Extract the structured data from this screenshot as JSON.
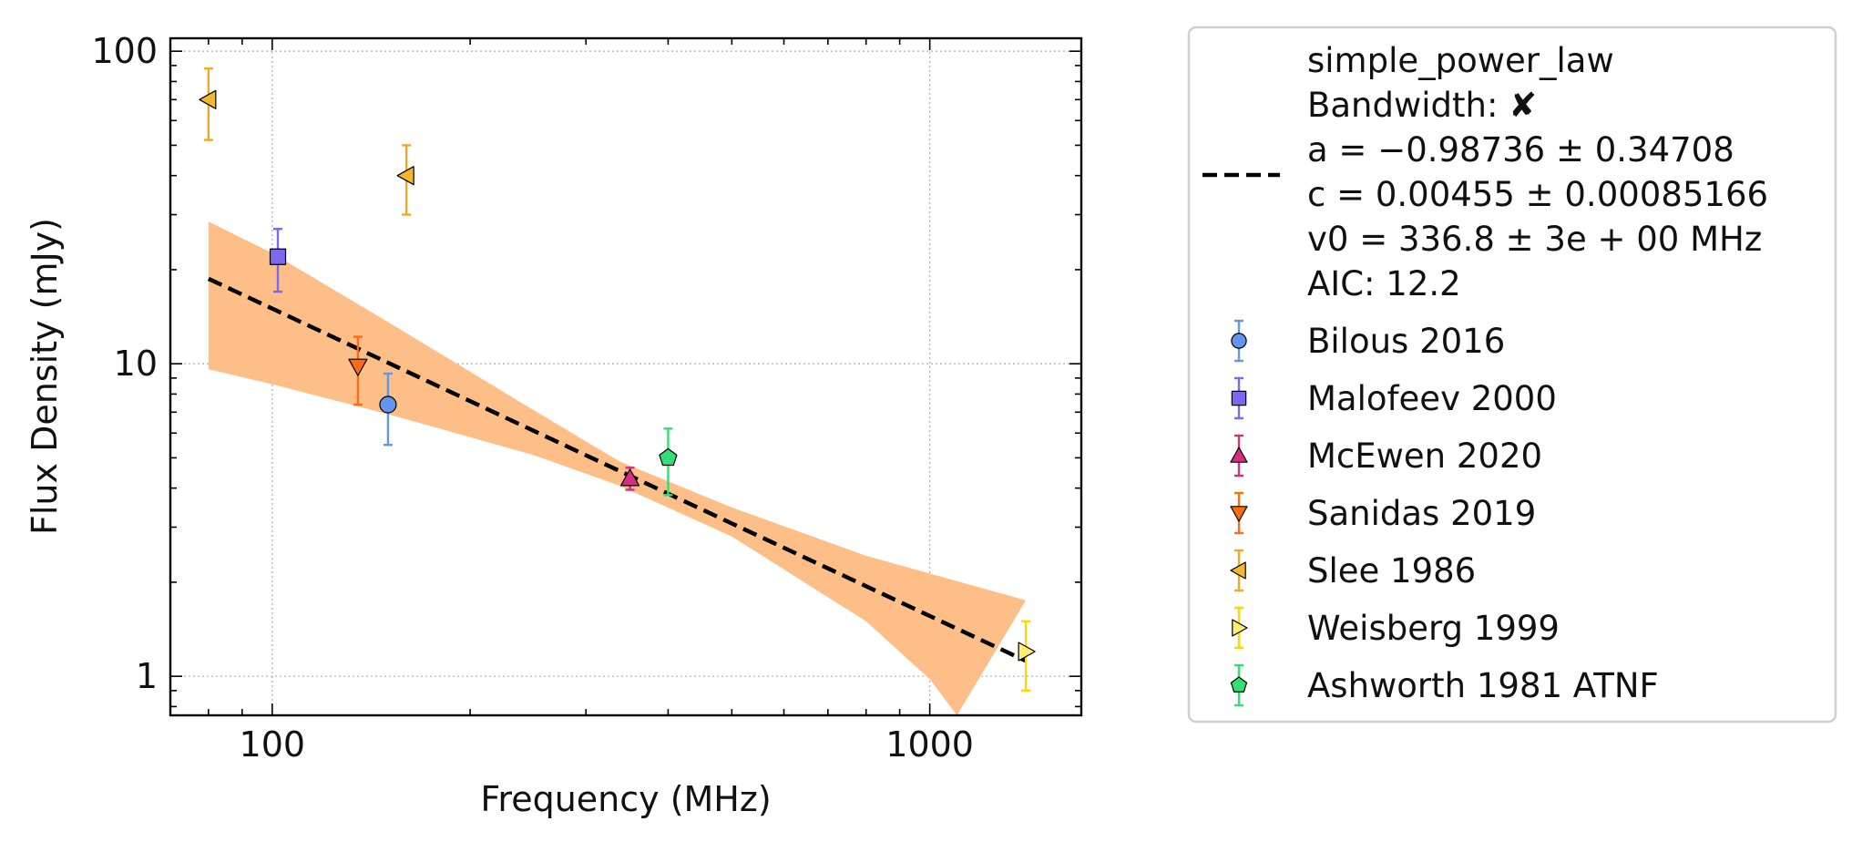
{
  "chart_data": {
    "type": "scatter",
    "xlabel": "Frequency (MHz)",
    "ylabel": "Flux Density (mJy)",
    "x_scale": "log",
    "y_scale": "log",
    "xlim": [
      70,
      1700
    ],
    "ylim": [
      0.75,
      110
    ],
    "x_ticks": [
      {
        "value": 100,
        "label": "100"
      },
      {
        "value": 1000,
        "label": "1000"
      }
    ],
    "y_ticks": [
      {
        "value": 1,
        "label": "1"
      },
      {
        "value": 10,
        "label": "10"
      },
      {
        "value": 100,
        "label": "100"
      }
    ],
    "grid": true,
    "legend_position": "outside-right",
    "fit": {
      "name": "simple_power_law",
      "legend_lines": [
        "simple_power_law",
        "Bandwidth: ✘",
        "a = −0.98736 ± 0.34708",
        "c = 0.00455 ± 0.00085166",
        "v0 = 336.8 ± 3e + 00 MHz",
        "AIC: 12.2"
      ],
      "line_color": "#000000",
      "band_color": "#fdbf87",
      "line": [
        {
          "x": 80,
          "y": 18.7
        },
        {
          "x": 1400,
          "y": 1.12
        }
      ],
      "band_upper": [
        {
          "x": 80,
          "y": 28.5
        },
        {
          "x": 100,
          "y": 22.6
        },
        {
          "x": 150,
          "y": 13.6
        },
        {
          "x": 250,
          "y": 7.1
        },
        {
          "x": 336.8,
          "y": 4.88
        },
        {
          "x": 500,
          "y": 3.47
        },
        {
          "x": 800,
          "y": 2.43
        },
        {
          "x": 1400,
          "y": 1.75
        }
      ],
      "band_lower": [
        {
          "x": 80,
          "y": 9.6
        },
        {
          "x": 100,
          "y": 8.6
        },
        {
          "x": 150,
          "y": 6.9
        },
        {
          "x": 250,
          "y": 5.1
        },
        {
          "x": 336.8,
          "y": 4.08
        },
        {
          "x": 500,
          "y": 2.8
        },
        {
          "x": 800,
          "y": 1.5
        },
        {
          "x": 1000,
          "y": 0.98
        },
        {
          "x": 1100,
          "y": 0.75
        }
      ]
    },
    "series": [
      {
        "name": "Bilous 2016",
        "marker": "circle",
        "color": "#6495ed",
        "ecolor": "#6495ed",
        "points": [
          {
            "x": 150,
            "y": 7.4,
            "yerr_low": 5.5,
            "yerr_high": 9.3
          }
        ]
      },
      {
        "name": "Malofeev 2000",
        "marker": "square",
        "color": "#7b68ee",
        "ecolor": "#7b68ee",
        "points": [
          {
            "x": 102,
            "y": 22,
            "yerr_low": 17,
            "yerr_high": 27
          }
        ]
      },
      {
        "name": "McEwen 2020",
        "marker": "triangle-up",
        "color": "#d62f7f",
        "ecolor": "#d62f7f",
        "points": [
          {
            "x": 350,
            "y": 4.3,
            "yerr_low": 3.95,
            "yerr_high": 4.65
          }
        ]
      },
      {
        "name": "Sanidas 2019",
        "marker": "triangle-down",
        "color": "#ff6a13",
        "ecolor": "#ff6a13",
        "points": [
          {
            "x": 135,
            "y": 9.8,
            "yerr_low": 7.4,
            "yerr_high": 12.2
          }
        ]
      },
      {
        "name": "Slee 1986",
        "marker": "triangle-left",
        "color": "#f5b731",
        "ecolor": "#f5a623",
        "points": [
          {
            "x": 80,
            "y": 70,
            "yerr_low": 52,
            "yerr_high": 88
          },
          {
            "x": 160,
            "y": 40,
            "yerr_low": 30,
            "yerr_high": 50
          }
        ]
      },
      {
        "name": "Weisberg 1999",
        "marker": "triangle-right",
        "color": "#ffee70",
        "ecolor": "#ffd700",
        "points": [
          {
            "x": 1400,
            "y": 1.2,
            "yerr_low": 0.9,
            "yerr_high": 1.5
          }
        ]
      },
      {
        "name": "Ashworth 1981 ATNF",
        "marker": "pentagon",
        "color": "#33dd77",
        "ecolor": "#33dd77",
        "points": [
          {
            "x": 400,
            "y": 5.0,
            "yerr_low": 3.8,
            "yerr_high": 6.2
          }
        ]
      }
    ]
  }
}
